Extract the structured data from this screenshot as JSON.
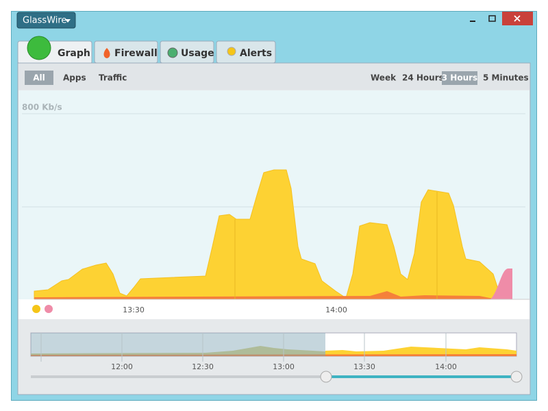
{
  "app_menu": "GlassWire",
  "tabs": [
    "Graph",
    "Firewall",
    "Usage",
    "Alerts"
  ],
  "filters": [
    "All",
    "Apps",
    "Traffic"
  ],
  "ranges": [
    "Week",
    "24 Hours",
    "3 Hours",
    "5 Minutes"
  ],
  "graph": {
    "scale_label": "800 Kb/s",
    "time_labels": [
      "13:30",
      "14:00"
    ]
  },
  "overview": {
    "time_labels": [
      "12:00",
      "12:30",
      "13:00",
      "13:30",
      "14:00"
    ]
  }
}
